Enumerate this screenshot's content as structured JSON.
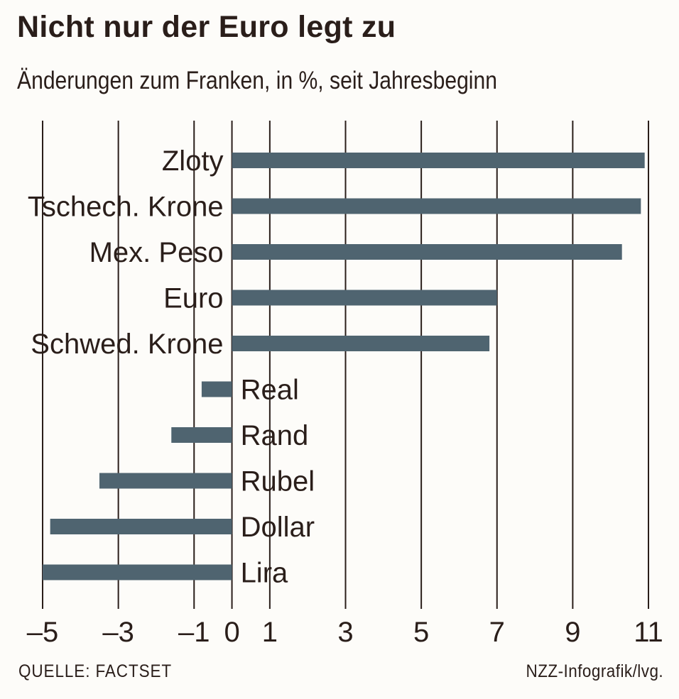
{
  "chart_data": {
    "type": "bar",
    "orientation": "horizontal",
    "title": "Nicht nur der Euro legt zu",
    "subtitle": "Änderungen zum Franken, in %, seit Jahresbeginn",
    "categories": [
      "Zloty",
      "Tschech. Krone",
      "Mex. Peso",
      "Euro",
      "Schwed. Krone",
      "Real",
      "Rand",
      "Rubel",
      "Dollar",
      "Lira"
    ],
    "values": [
      10.9,
      10.8,
      10.3,
      7.0,
      6.8,
      -0.8,
      -1.6,
      -3.5,
      -4.8,
      -5.0
    ],
    "xlim": [
      -5,
      11
    ],
    "xticks": [
      -5,
      -3,
      -1,
      0,
      1,
      3,
      5,
      7,
      9,
      11
    ],
    "xtick_labels": [
      "–5",
      "–3",
      "–1",
      "0",
      "1",
      "3",
      "5",
      "7",
      "9",
      "11"
    ],
    "bar_color": "#4f6470",
    "grid": "vertical",
    "source": "QUELLE: FACTSET",
    "credit": "NZZ-Infografik/lvg."
  }
}
